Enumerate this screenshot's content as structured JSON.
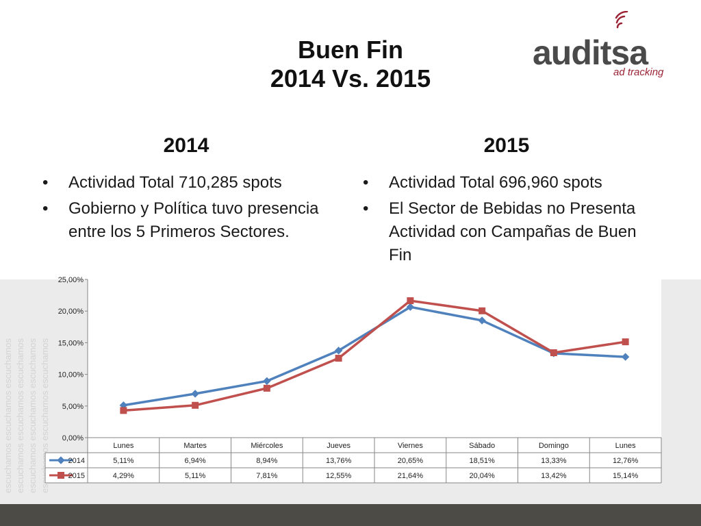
{
  "slide": {
    "title_line1": "Buen Fin",
    "title_line2": "2014 Vs. 2015"
  },
  "logo": {
    "brand": "auditsa",
    "tagline": "ad tracking"
  },
  "columns": [
    {
      "heading": "2014",
      "bullets": [
        "Actividad Total 710,285 spots",
        "Gobierno y Política tuvo presencia entre los 5 Primeros Sectores."
      ]
    },
    {
      "heading": "2015",
      "bullets": [
        "Actividad Total 696,960 spots",
        "El Sector de Bebidas no Presenta Actividad con Campañas de Buen Fin"
      ]
    }
  ],
  "watermark_text": "escuchamos escuchamos escuchamos",
  "colors": {
    "series_2014": "#4f81bd",
    "series_2015": "#c0504d",
    "band_bg": "#eaebea",
    "footer_bg": "#4c4b45",
    "logo_text": "#4a4a4a",
    "logo_accent": "#9b2335"
  },
  "chart_data": {
    "type": "line",
    "categories": [
      "Lunes",
      "Martes",
      "Miércoles",
      "Jueves",
      "Viernes",
      "Sábado",
      "Domingo",
      "Lunes"
    ],
    "series": [
      {
        "name": "2014",
        "values": [
          5.11,
          6.94,
          8.94,
          13.76,
          20.65,
          18.51,
          13.33,
          12.76
        ],
        "labels": [
          "5,11%",
          "6,94%",
          "8,94%",
          "13,76%",
          "20,65%",
          "18,51%",
          "13,33%",
          "12,76%"
        ],
        "marker": "diamond",
        "color": "#4f81bd"
      },
      {
        "name": "2015",
        "values": [
          4.29,
          5.11,
          7.81,
          12.55,
          21.64,
          20.04,
          13.42,
          15.14
        ],
        "labels": [
          "4,29%",
          "5,11%",
          "7,81%",
          "12,55%",
          "21,64%",
          "20,04%",
          "13,42%",
          "15,14%"
        ],
        "marker": "square",
        "color": "#c0504d"
      }
    ],
    "y_ticks": [
      "0,00%",
      "5,00%",
      "10,00%",
      "15,00%",
      "20,00%",
      "25,00%"
    ],
    "ylim": [
      0,
      25
    ],
    "grid": false,
    "legend": "data-table",
    "title": "",
    "xlabel": "",
    "ylabel": ""
  }
}
